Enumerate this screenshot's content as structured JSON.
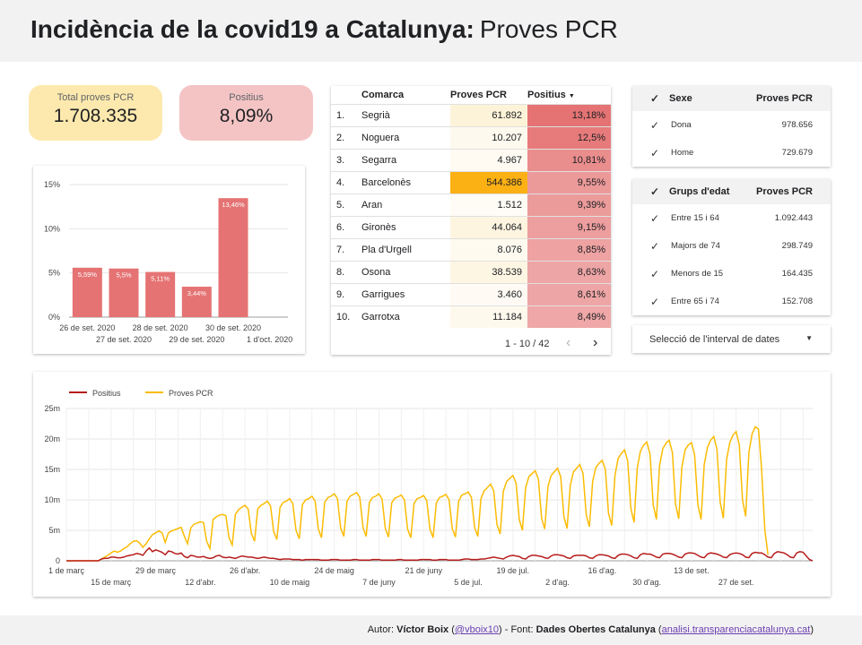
{
  "header": {
    "title_bold": "Incidència de la covid19 a Catalunya:",
    "title_sub": "Proves PCR"
  },
  "kpis": [
    {
      "label": "Total proves PCR",
      "value": "1.708.335"
    },
    {
      "label": "Positius",
      "value": "8,09%"
    }
  ],
  "bar_chart": {
    "type": "bar",
    "categories": [
      "26 de set. 2020",
      "27 de set. 2020",
      "28 de set. 2020",
      "29 de set. 2020",
      "30 de set. 2020",
      "1 d'oct. 2020"
    ],
    "values": [
      5.59,
      5.5,
      5.11,
      3.44,
      13.46,
      null
    ],
    "value_labels": [
      "5,59%",
      "5,5%",
      "5,11%",
      "3,44%",
      "13,46%",
      ""
    ],
    "y_ticks": [
      "0%",
      "5%",
      "10%",
      "15%"
    ],
    "ylim": [
      0,
      15
    ],
    "color": "#e57373"
  },
  "table": {
    "columns": [
      "Comarca",
      "Proves PCR",
      "Positius"
    ],
    "sort_icon": "sort-down-icon",
    "rows": [
      {
        "n": "1.",
        "comarca": "Segrià",
        "pcr": "61.892",
        "pos": "13,18%",
        "pcr_bg": "#fdf3d8",
        "pos_bg": "#e57373"
      },
      {
        "n": "2.",
        "comarca": "Noguera",
        "pcr": "10.207",
        "pos": "12,5%",
        "pcr_bg": "#fef9ee",
        "pos_bg": "#e77b7b"
      },
      {
        "n": "3.",
        "comarca": "Segarra",
        "pcr": "4.967",
        "pos": "10,81%",
        "pcr_bg": "#fffbf3",
        "pos_bg": "#ea8d8d"
      },
      {
        "n": "4.",
        "comarca": "Barcelonès",
        "pcr": "544.386",
        "pos": "9,55%",
        "pcr_bg": "#fbb014",
        "pos_bg": "#ec9999"
      },
      {
        "n": "5.",
        "comarca": "Aran",
        "pcr": "1.512",
        "pos": "9,39%",
        "pcr_bg": "#fffcf6",
        "pos_bg": "#ec9b9b"
      },
      {
        "n": "6.",
        "comarca": "Gironès",
        "pcr": "44.064",
        "pos": "9,15%",
        "pcr_bg": "#fdf5e0",
        "pos_bg": "#ed9e9e"
      },
      {
        "n": "7.",
        "comarca": "Pla d'Urgell",
        "pcr": "8.076",
        "pos": "8,85%",
        "pcr_bg": "#fefaf0",
        "pos_bg": "#eea2a2"
      },
      {
        "n": "8.",
        "comarca": "Osona",
        "pcr": "38.539",
        "pos": "8,63%",
        "pcr_bg": "#fdf6e3",
        "pos_bg": "#eea5a5"
      },
      {
        "n": "9.",
        "comarca": "Garrigues",
        "pcr": "3.460",
        "pos": "8,61%",
        "pcr_bg": "#fffbf4",
        "pos_bg": "#eea5a5"
      },
      {
        "n": "10.",
        "comarca": "Garrotxa",
        "pcr": "11.184",
        "pos": "8,49%",
        "pcr_bg": "#fef9ed",
        "pos_bg": "#efa7a7"
      }
    ],
    "pager": "1 - 10 / 42"
  },
  "sexe": {
    "header": [
      "Sexe",
      "Proves PCR"
    ],
    "rows": [
      {
        "label": "Dona",
        "value": "978.656"
      },
      {
        "label": "Home",
        "value": "729.679"
      }
    ]
  },
  "edat": {
    "header": [
      "Grups d'edat",
      "Proves PCR"
    ],
    "rows": [
      {
        "label": "Entre 15 i 64",
        "value": "1.092.443"
      },
      {
        "label": "Majors de 74",
        "value": "298.749"
      },
      {
        "label": "Menors de 15",
        "value": "164.435"
      },
      {
        "label": "Entre 65 i 74",
        "value": "152.708"
      }
    ]
  },
  "date_selector": {
    "label": "Selecció de l'interval de dates"
  },
  "chart_data": {
    "type": "line",
    "legend": [
      "Positius",
      "Proves PCR"
    ],
    "legend_placement": "top-left",
    "series": [
      {
        "name": "Positius",
        "color": "#b71c1c",
        "values": [
          0,
          0,
          0,
          0,
          0,
          0,
          0,
          0,
          0,
          0,
          0,
          0.3,
          0.4,
          0.4,
          0.6,
          0.6,
          0.5,
          0.5,
          0.6,
          0.8,
          0.9,
          1.0,
          1.2,
          1.1,
          0.9,
          1.6,
          2.1,
          1.5,
          1.8,
          1.6,
          1.4,
          1.0,
          1.6,
          1.5,
          1.2,
          1.1,
          1.3,
          0.7,
          0.5,
          0.9,
          0.8,
          0.6,
          0.6,
          0.7,
          0.5,
          0.4,
          0.5,
          0.8,
          0.9,
          0.6,
          0.5,
          0.6,
          0.5,
          0.4,
          0.6,
          0.8,
          0.7,
          0.6,
          0.6,
          0.5,
          0.4,
          0.5,
          0.6,
          0.5,
          0.4,
          0.4,
          0.3,
          0.2,
          0.3,
          0.3,
          0.3,
          0.2,
          0.2,
          0.2,
          0.1,
          0.2,
          0.2,
          0.2,
          0.2,
          0.2,
          0.1,
          0.1,
          0.1,
          0.2,
          0.2,
          0.2,
          0.1,
          0.1,
          0.1,
          0.1,
          0.2,
          0.2,
          0.1,
          0.1,
          0.1,
          0.1,
          0.2,
          0.2,
          0.2,
          0.1,
          0.1,
          0.1,
          0.1,
          0.1,
          0.2,
          0.2,
          0.1,
          0.1,
          0.1,
          0.1,
          0.1,
          0.2,
          0.2,
          0.2,
          0.2,
          0.1,
          0.1,
          0.2,
          0.2,
          0.2,
          0.1,
          0.1,
          0.1,
          0.1,
          0.2,
          0.3,
          0.3,
          0.2,
          0.2,
          0.2,
          0.3,
          0.3,
          0.4,
          0.5,
          0.6,
          0.5,
          0.4,
          0.3,
          0.6,
          0.8,
          0.9,
          0.8,
          0.7,
          0.4,
          0.3,
          0.7,
          0.9,
          0.9,
          0.8,
          0.7,
          0.5,
          0.4,
          0.8,
          1.0,
          1.0,
          0.9,
          0.8,
          0.5,
          0.4,
          0.8,
          0.9,
          0.9,
          0.9,
          0.8,
          0.5,
          0.4,
          0.8,
          1.0,
          1.0,
          0.9,
          0.8,
          0.5,
          0.4,
          0.9,
          1.1,
          1.1,
          1.0,
          0.8,
          0.5,
          0.4,
          1.0,
          1.2,
          1.1,
          1.1,
          0.9,
          0.6,
          0.5,
          1.1,
          1.2,
          1.2,
          1.1,
          0.9,
          0.6,
          0.5,
          1.1,
          1.3,
          1.3,
          1.2,
          0.9,
          0.6,
          0.5,
          1.1,
          1.3,
          1.2,
          1.1,
          0.9,
          0.6,
          0.5,
          1.0,
          1.2,
          1.3,
          1.2,
          1.0,
          0.6,
          0.5,
          1.2,
          1.4,
          1.3,
          1.3,
          1.0,
          0.6,
          0.5,
          1.2,
          1.5,
          1.4,
          1.3,
          1.0,
          0.6,
          0.5,
          1.3,
          1.5,
          1.4,
          0.8,
          0.2,
          0
        ]
      },
      {
        "name": "Proves PCR",
        "color": "#fbbc04",
        "values": [
          0,
          0,
          0,
          0,
          0,
          0,
          0,
          0,
          0,
          0,
          0,
          0.3,
          0.6,
          0.9,
          1.3,
          1.6,
          1.4,
          1.6,
          2.0,
          2.3,
          2.8,
          3.2,
          3.3,
          2.9,
          2.2,
          2.8,
          3.6,
          4.3,
          4.6,
          4.9,
          4.6,
          3.0,
          4.6,
          4.9,
          5.1,
          5.3,
          5.5,
          4.0,
          2.8,
          5.4,
          6.0,
          6.2,
          6.4,
          6.3,
          3.2,
          2.0,
          6.8,
          7.2,
          7.5,
          7.6,
          7.4,
          3.8,
          2.6,
          7.6,
          8.4,
          8.8,
          9.1,
          8.5,
          4.5,
          3.2,
          8.5,
          9.1,
          9.4,
          9.8,
          9.0,
          4.8,
          3.5,
          8.8,
          9.6,
          9.8,
          10.2,
          9.4,
          5.0,
          3.6,
          9.2,
          10.0,
          10.2,
          10.6,
          9.8,
          5.2,
          3.8,
          9.6,
          10.4,
          10.6,
          11.0,
          10.2,
          5.4,
          4.0,
          9.8,
          10.6,
          10.9,
          11.2,
          10.4,
          5.5,
          4.0,
          9.6,
          10.4,
          10.6,
          11.0,
          10.1,
          5.3,
          3.9,
          9.5,
          10.3,
          10.5,
          10.8,
          10.0,
          5.2,
          3.8,
          9.4,
          10.2,
          10.4,
          10.7,
          9.9,
          5.2,
          3.8,
          9.5,
          10.4,
          10.6,
          10.9,
          10.0,
          5.3,
          3.9,
          9.8,
          10.8,
          11.0,
          11.3,
          10.4,
          5.5,
          4.0,
          10.2,
          11.5,
          12.0,
          12.6,
          11.5,
          6.0,
          4.4,
          11.4,
          13.0,
          13.5,
          14.0,
          12.8,
          6.8,
          5.0,
          12.0,
          13.8,
          14.3,
          14.8,
          13.4,
          7.0,
          5.2,
          12.2,
          14.0,
          14.6,
          15.2,
          13.8,
          7.2,
          5.3,
          12.4,
          14.6,
          15.2,
          15.8,
          14.3,
          7.5,
          5.6,
          13.0,
          15.3,
          16.0,
          16.5,
          15.0,
          7.8,
          5.8,
          14.0,
          16.8,
          17.6,
          18.2,
          16.4,
          8.6,
          6.3,
          15.2,
          18.0,
          19.0,
          19.5,
          17.5,
          9.2,
          6.8,
          15.6,
          18.4,
          19.3,
          19.8,
          17.8,
          9.3,
          6.9,
          15.4,
          18.2,
          19.0,
          19.4,
          17.4,
          9.2,
          6.8,
          15.8,
          18.6,
          19.8,
          20.4,
          18.3,
          9.6,
          7.0,
          16.6,
          19.4,
          20.6,
          21.2,
          19.0,
          10.0,
          7.3,
          17.8,
          20.8,
          22.0,
          21.6,
          15.0,
          5.0,
          1.0
        ]
      }
    ],
    "x_start_label": "1 de març",
    "x_tick_labels": [
      {
        "label": "1 de març",
        "day": 0,
        "row": 1
      },
      {
        "label": "15 de març",
        "day": 14,
        "row": 2
      },
      {
        "label": "29 de març",
        "day": 28,
        "row": 1
      },
      {
        "label": "12 d'abr.",
        "day": 42,
        "row": 2
      },
      {
        "label": "26 d'abr.",
        "day": 56,
        "row": 1
      },
      {
        "label": "10 de maig",
        "day": 70,
        "row": 2
      },
      {
        "label": "24 de maig",
        "day": 84,
        "row": 1
      },
      {
        "label": "7 de juny",
        "day": 98,
        "row": 2
      },
      {
        "label": "21 de juny",
        "day": 112,
        "row": 1
      },
      {
        "label": "5 de jul.",
        "day": 126,
        "row": 2
      },
      {
        "label": "19 de jul.",
        "day": 140,
        "row": 1
      },
      {
        "label": "2 d'ag.",
        "day": 154,
        "row": 2
      },
      {
        "label": "16 d'ag.",
        "day": 168,
        "row": 1
      },
      {
        "label": "30 d'ag.",
        "day": 182,
        "row": 2
      },
      {
        "label": "13 de set.",
        "day": 196,
        "row": 1
      },
      {
        "label": "27 de set.",
        "day": 210,
        "row": 2
      }
    ],
    "y_ticks": [
      {
        "label": "0",
        "value": 0
      },
      {
        "label": "5m",
        "value": 5
      },
      {
        "label": "10m",
        "value": 10
      },
      {
        "label": "15m",
        "value": 15
      },
      {
        "label": "20m",
        "value": 20
      },
      {
        "label": "25m",
        "value": 25
      }
    ],
    "ylim": [
      0,
      25
    ],
    "grid": true
  },
  "footer": {
    "prefix": "Autor: ",
    "author": "Víctor Boix",
    "handle": "@vboix10",
    "mid": " - Font: ",
    "source": "Dades Obertes Catalunya",
    "url": "analisi.transparenciacatalunya.cat"
  }
}
